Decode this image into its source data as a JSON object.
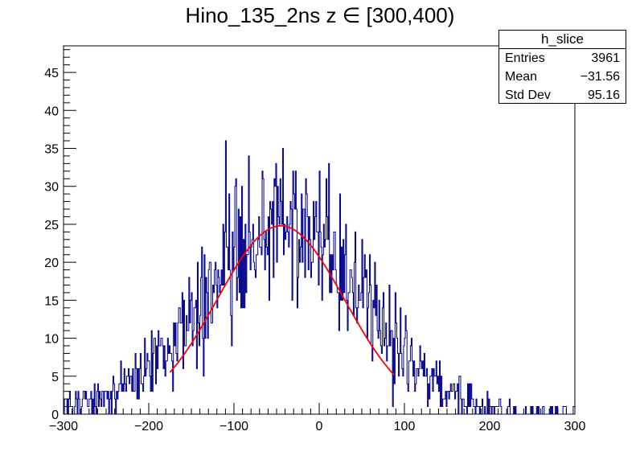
{
  "chart_data": {
    "type": "histogram",
    "title": "Hino_135_2ns z  ∈ [300,400)",
    "xlim": [
      -300,
      300
    ],
    "ylim": [
      0,
      48.5
    ],
    "xticks": [
      -300,
      -200,
      -100,
      0,
      100,
      200,
      300
    ],
    "xtick_labels": [
      "−300",
      "−200",
      "−100",
      "0",
      "100",
      "200",
      "300"
    ],
    "yticks": [
      0,
      5,
      10,
      15,
      20,
      25,
      30,
      35,
      40,
      45
    ],
    "yaxis_max_visible": 48.5,
    "histogram": {
      "name": "h_slice",
      "color": "#00008b",
      "bin_width": 1,
      "envelope_note": "noisy per-bin counts following a Gaussian-like envelope",
      "envelope_peak_x": -45,
      "envelope_peak_y": 25
    },
    "fit": {
      "type": "gaussian",
      "color": "#ff0000",
      "x_range": [
        -175,
        88
      ],
      "mean": -45,
      "sigma": 75,
      "amplitude": 24.8
    },
    "stats_box": {
      "name": "h_slice",
      "rows": [
        {
          "label": "Entries",
          "value": "3961"
        },
        {
          "label": "Mean",
          "value": "−31.56"
        },
        {
          "label": "Std Dev",
          "value": "95.16"
        }
      ]
    },
    "grid": false,
    "legend": "top-right"
  }
}
